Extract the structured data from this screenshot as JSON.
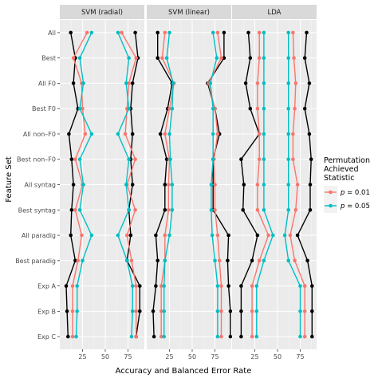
{
  "chart_data": {
    "type": "line",
    "xlabel": "Accuracy and Balanced Error Rate",
    "ylabel": "Feature Set",
    "xlim": [
      0,
      93
    ],
    "x_ticks": [
      25,
      50,
      75
    ],
    "grid": true,
    "categories": [
      "All",
      "Best",
      "All F0",
      "Best F0",
      "All non–F0",
      "Best non–F0",
      "All syntag",
      "Best syntag",
      "All paradig",
      "Best paradig",
      "Exp A",
      "Exp B",
      "Exp C"
    ],
    "panels": [
      {
        "title": "SVM (radial)",
        "series": [
          {
            "key": "black",
            "values": [
              12,
              17,
              15,
              20,
              10,
              13,
              15,
              13,
              12,
              17,
              7,
              8,
              9
            ],
            "values2": [
              83,
              86,
              80,
              78,
              80,
              78,
              80,
              76,
              78,
              74,
              88,
              88,
              84
            ]
          },
          {
            "key": "red",
            "values": [
              30,
              15,
              24,
              25,
              28,
              17,
              25,
              17,
              24,
              20,
              14,
              14,
              14
            ],
            "values2": [
              68,
              84,
              76,
              74,
              72,
              83,
              74,
              83,
              74,
              79,
              84,
              84,
              84
            ]
          },
          {
            "key": "cyan",
            "values": [
              35,
              22,
              26,
              22,
              35,
              22,
              26,
              22,
              35,
              25,
              19,
              19,
              18
            ],
            "values2": [
              64,
              76,
              73,
              76,
              64,
              76,
              73,
              76,
              64,
              74,
              80,
              80,
              79
            ]
          }
        ]
      },
      {
        "title": "SVM (linear)",
        "series": [
          {
            "key": "black",
            "values": [
              12,
              12,
              28,
              23,
              15,
              22,
              20,
              20,
              10,
              12,
              10,
              7,
              8
            ],
            "values2": [
              85,
              85,
              67,
              75,
              80,
              73,
              73,
              73,
              90,
              89,
              90,
              92,
              92
            ]
          },
          {
            "key": "red",
            "values": [
              20,
              17,
              30,
              25,
              20,
              25,
              24,
              24,
              20,
              20,
              16,
              16,
              16
            ],
            "values2": [
              78,
              82,
              68,
              75,
              78,
              74,
              75,
              75,
              78,
              80,
              82,
              82,
              82
            ]
          },
          {
            "key": "cyan",
            "values": [
              25,
              22,
              29,
              28,
              25,
              26,
              28,
              28,
              25,
              20,
              19,
              19,
              19
            ],
            "values2": [
              73,
              77,
              70,
              73,
              73,
              73,
              71,
              71,
              72,
              75,
              78,
              78,
              78
            ]
          }
        ]
      },
      {
        "title": "LDA",
        "series": [
          {
            "key": "black",
            "values": [
              18,
              20,
              15,
              20,
              30,
              10,
              13,
              12,
              28,
              22,
              10,
              10,
              10
            ],
            "values2": [
              82,
              80,
              85,
              80,
              85,
              87,
              86,
              86,
              72,
              83,
              88,
              88,
              88
            ]
          },
          {
            "key": "red",
            "values": [
              30,
              30,
              28,
              28,
              30,
              30,
              28,
              28,
              40,
              30,
              22,
              22,
              22
            ],
            "values2": [
              67,
              68,
              70,
              69,
              67,
              67,
              72,
              70,
              64,
              69,
              80,
              80,
              80
            ]
          },
          {
            "key": "cyan",
            "values": [
              35,
              35,
              35,
              35,
              35,
              35,
              35,
              35,
              45,
              35,
              27,
              27,
              27
            ],
            "values2": [
              62,
              62,
              62,
              62,
              62,
              62,
              62,
              62,
              58,
              62,
              75,
              75,
              75
            ]
          }
        ]
      }
    ],
    "legend": {
      "title_lines": [
        "Permutation",
        "Achieved",
        "Statistic"
      ],
      "position": "right",
      "entries": [
        {
          "key": "red",
          "label": "p = 0.01",
          "var": "p",
          "eq": " = 0.01"
        },
        {
          "key": "cyan",
          "label": "p = 0.05",
          "var": "p",
          "eq": " = 0.05"
        }
      ]
    },
    "colors": {
      "black": "#000000",
      "red": "#f8766d",
      "cyan": "#00bfc4"
    }
  }
}
